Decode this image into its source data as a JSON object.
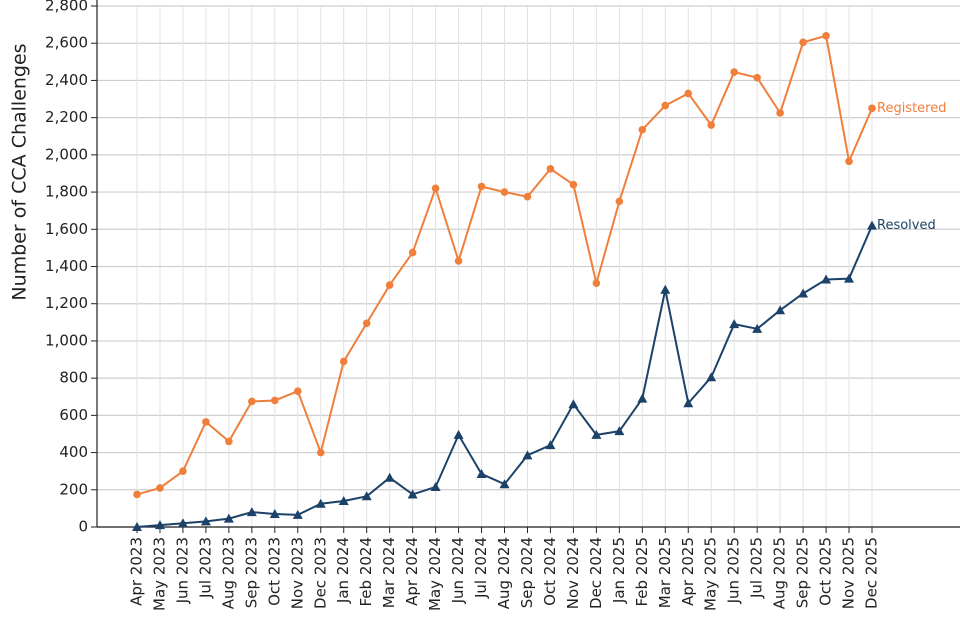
{
  "chart_data": {
    "type": "line",
    "y_label": "Number of CCA Challenges",
    "categories": [
      "Apr 2023",
      "May 2023",
      "Jun 2023",
      "Jul 2023",
      "Aug 2023",
      "Sep 2023",
      "Oct 2023",
      "Nov 2023",
      "Dec 2023",
      "Jan 2024",
      "Feb 2024",
      "Mar 2024",
      "Apr 2024",
      "May 2024",
      "Jun 2024",
      "Jul 2024",
      "Aug 2024",
      "Sep 2024",
      "Oct 2024",
      "Nov 2024",
      "Dec 2024",
      "Jan 2025",
      "Feb 2025",
      "Mar 2025",
      "Apr 2025",
      "May 2025",
      "Jun 2025",
      "Jul 2025",
      "Aug 2025",
      "Sep 2025",
      "Oct 2025",
      "Nov 2025",
      "Dec 2025"
    ],
    "series": [
      {
        "name": "Registered",
        "color": "#f07f3c",
        "marker": "circle",
        "values": [
          175,
          210,
          300,
          565,
          460,
          675,
          680,
          730,
          400,
          890,
          1095,
          1300,
          1475,
          1820,
          1430,
          1830,
          1800,
          1775,
          1925,
          1840,
          1310,
          1750,
          2135,
          2265,
          2330,
          2160,
          2445,
          2415,
          2225,
          2605,
          2640,
          1965,
          2250
        ]
      },
      {
        "name": "Resolved",
        "color": "#1d4269",
        "marker": "triangle",
        "values": [
          0,
          10,
          20,
          30,
          45,
          80,
          70,
          65,
          125,
          140,
          165,
          265,
          175,
          215,
          495,
          285,
          230,
          385,
          440,
          660,
          495,
          515,
          690,
          1275,
          665,
          805,
          1090,
          1065,
          1165,
          1255,
          1330,
          1335,
          1620
        ]
      }
    ],
    "ylim": [
      0,
      2800
    ],
    "yticks": [
      0,
      200,
      400,
      600,
      800,
      {
        "value": 1000,
        "label": "1,000"
      },
      {
        "value": 1200,
        "label": "1,200"
      },
      {
        "value": 1400,
        "label": "1,400"
      },
      {
        "value": 1600,
        "label": "1,600"
      },
      {
        "value": 1800,
        "label": "1,800"
      },
      {
        "value": 2000,
        "label": "2,000"
      },
      {
        "value": 2200,
        "label": "2,200"
      },
      {
        "value": 2400,
        "label": "2,400"
      },
      {
        "value": 2600,
        "label": "2,600"
      },
      {
        "value": 2800,
        "label": "2,800"
      }
    ],
    "grid": true
  }
}
